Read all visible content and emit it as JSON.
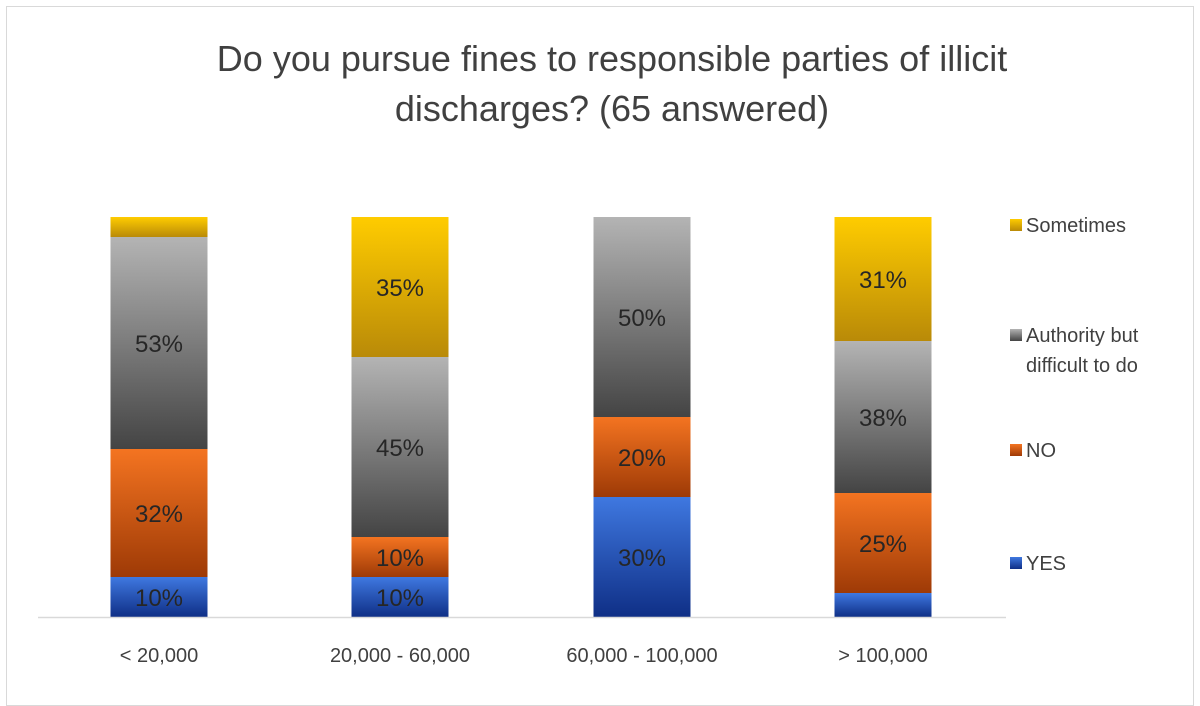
{
  "chart_data": {
    "type": "bar",
    "stacked": true,
    "title_lines": [
      "Do you pursue fines to responsible parties of illicit",
      "discharges? (65 answered)"
    ],
    "categories": [
      "< 20,000",
      "20,000 - 60,000",
      "60,000 - 100,000",
      "> 100,000"
    ],
    "series": [
      {
        "name": "YES",
        "values": [
          10,
          10,
          30,
          6
        ],
        "labels": [
          "10%",
          "10%",
          "30%",
          ""
        ]
      },
      {
        "name": "NO",
        "values": [
          32,
          10,
          20,
          25
        ],
        "labels": [
          "32%",
          "10%",
          "20%",
          "25%"
        ]
      },
      {
        "name": "Authority but difficult to do",
        "values": [
          53,
          45,
          50,
          38
        ],
        "labels": [
          "53%",
          "45%",
          "50%",
          "38%"
        ]
      },
      {
        "name": "Sometimes",
        "values": [
          5,
          35,
          0,
          31
        ],
        "labels": [
          "",
          "35%",
          "",
          "31%"
        ]
      }
    ],
    "ylim": [
      0,
      100
    ],
    "legend_position": "right",
    "gridlines": false
  },
  "colors": {
    "YES": [
      "#3f78e0",
      "#0f2f86"
    ],
    "NO": [
      "#f47421",
      "#9e3a06"
    ],
    "Authority but difficult to do": [
      "#b4b4b4",
      "#444444"
    ],
    "Sometimes": [
      "#ffcc00",
      "#b98a08"
    ]
  }
}
